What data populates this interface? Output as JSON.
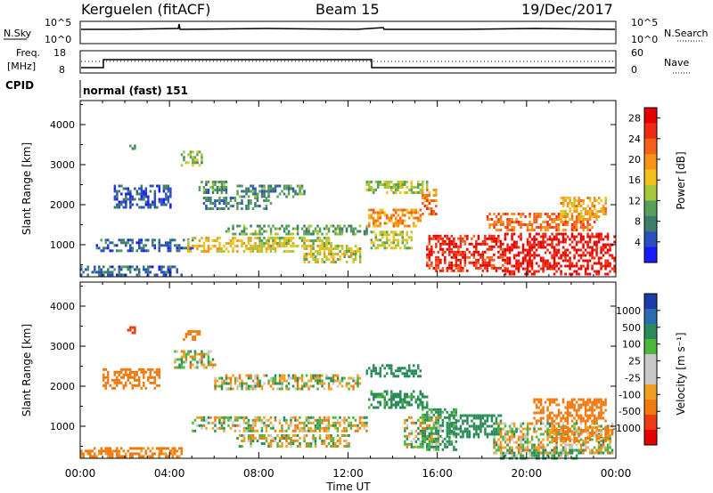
{
  "header": {
    "station": "Kerguelen (fitACF)",
    "beam": "Beam 15",
    "date": "19/Dec/2017"
  },
  "noise_panel": {
    "left_label": "N.Sky",
    "right_label": "N.Search",
    "left_ticks": [
      "10^5",
      "10^0"
    ],
    "right_ticks": [
      "10^5",
      "10^0"
    ]
  },
  "freq_panel": {
    "left_label_1": "Freq.",
    "left_label_2": "[MHz]",
    "right_label": "Nave",
    "left_ticks": [
      "18",
      "8"
    ],
    "right_ticks": [
      "60",
      "0"
    ]
  },
  "cpid_panel": {
    "label": "CPID",
    "mode": "normal (fast) 151"
  },
  "colors": {
    "power": [
      "#1a1aff",
      "#2b4fbf",
      "#3d7d6a",
      "#56a05a",
      "#a6c83c",
      "#f2c21b",
      "#f79319",
      "#f5601a",
      "#ef2b12",
      "#e60000"
    ],
    "velocity": [
      "#1c3da8",
      "#2a6cb0",
      "#2b8c5a",
      "#4ab83a",
      "#c8c8c8",
      "#c8c8c8",
      "#f0a020",
      "#f07a10",
      "#ee3b16",
      "#e60000"
    ]
  },
  "chart_data": [
    {
      "type": "heatmap",
      "title": "",
      "xlabel": "",
      "ylabel": "Slant Range [km]",
      "xlim": [
        "00:00",
        "24:00"
      ],
      "ylim": [
        200,
        4600
      ],
      "x_ticks": [
        "00:00",
        "04:00",
        "08:00",
        "12:00",
        "16:00",
        "20:00",
        "00:00"
      ],
      "y_ticks": [
        "1000",
        "2000",
        "3000",
        "4000"
      ],
      "colorbar": {
        "label": "Power [dB]",
        "ticks": [
          "28",
          "24",
          "20",
          "16",
          "12",
          "8",
          "4"
        ],
        "range": [
          0,
          30
        ]
      },
      "patches": [
        {
          "t0": 0.0,
          "t1": 4.5,
          "r0": 220,
          "r1": 480,
          "value": 6
        },
        {
          "t0": 0.7,
          "t1": 5.0,
          "r0": 880,
          "r1": 1150,
          "value": 6
        },
        {
          "t0": 1.5,
          "t1": 4.0,
          "r0": 1900,
          "r1": 2500,
          "value": 5
        },
        {
          "t0": 2.2,
          "t1": 2.4,
          "r0": 3300,
          "r1": 3500,
          "value": 7
        },
        {
          "t0": 4.5,
          "t1": 5.4,
          "r0": 2950,
          "r1": 3350,
          "value": 12
        },
        {
          "t0": 5.3,
          "t1": 6.5,
          "r0": 2300,
          "r1": 2600,
          "value": 9
        },
        {
          "t0": 4.8,
          "t1": 9.5,
          "r0": 850,
          "r1": 1200,
          "value": 17
        },
        {
          "t0": 6.5,
          "t1": 12.8,
          "r0": 1280,
          "r1": 1500,
          "value": 10
        },
        {
          "t0": 8.0,
          "t1": 11.2,
          "r0": 950,
          "r1": 1200,
          "value": 14
        },
        {
          "t0": 5.5,
          "t1": 8.5,
          "r0": 1900,
          "r1": 2200,
          "value": 8
        },
        {
          "t0": 7.0,
          "t1": 10.0,
          "r0": 2200,
          "r1": 2500,
          "value": 9
        },
        {
          "t0": 10.0,
          "t1": 12.5,
          "r0": 550,
          "r1": 1000,
          "value": 15
        },
        {
          "t0": 12.8,
          "t1": 15.5,
          "r0": 2300,
          "r1": 2600,
          "value": 13
        },
        {
          "t0": 12.9,
          "t1": 15.2,
          "r0": 1450,
          "r1": 1900,
          "value": 20
        },
        {
          "t0": 15.3,
          "t1": 15.9,
          "r0": 1750,
          "r1": 2400,
          "value": 21
        },
        {
          "t0": 13.0,
          "t1": 14.8,
          "r0": 900,
          "r1": 1350,
          "value": 14
        },
        {
          "t0": 15.5,
          "t1": 19.0,
          "r0": 350,
          "r1": 1250,
          "value": 26
        },
        {
          "t0": 19.0,
          "t1": 23.9,
          "r0": 250,
          "r1": 1300,
          "value": 28
        },
        {
          "t0": 18.2,
          "t1": 23.0,
          "r0": 1350,
          "r1": 1800,
          "value": 22
        },
        {
          "t0": 21.5,
          "t1": 23.5,
          "r0": 1650,
          "r1": 2200,
          "value": 18
        }
      ]
    },
    {
      "type": "heatmap",
      "title": "",
      "xlabel": "Time UT",
      "ylabel": "Slant Range [km]",
      "xlim": [
        "00:00",
        "24:00"
      ],
      "ylim": [
        200,
        4600
      ],
      "x_ticks": [
        "00:00",
        "04:00",
        "08:00",
        "12:00",
        "16:00",
        "20:00",
        "00:00"
      ],
      "y_ticks": [
        "1000",
        "2000",
        "3000",
        "4000"
      ],
      "colorbar": {
        "label": "Velocity [m s⁻¹]",
        "ticks": [
          "1000",
          "500",
          "100",
          "25",
          "-25",
          "-100",
          "-500",
          "-1000"
        ],
        "range": [
          -1000,
          1000
        ]
      },
      "patches": [
        {
          "t0": 0.0,
          "t1": 4.5,
          "r0": 220,
          "r1": 480,
          "value": -200
        },
        {
          "t0": 1.0,
          "t1": 3.5,
          "r0": 1950,
          "r1": 2450,
          "value": -300
        },
        {
          "t0": 2.1,
          "t1": 2.4,
          "r0": 3300,
          "r1": 3500,
          "value": -700
        },
        {
          "t0": 4.6,
          "t1": 5.3,
          "r0": 3150,
          "r1": 3400,
          "value": -350
        },
        {
          "t0": 4.2,
          "t1": 6.0,
          "r0": 2450,
          "r1": 2900,
          "value": 0
        },
        {
          "t0": 5.0,
          "t1": 12.8,
          "r0": 850,
          "r1": 1250,
          "value": 5
        },
        {
          "t0": 6.0,
          "t1": 12.5,
          "r0": 1900,
          "r1": 2300,
          "value": 0
        },
        {
          "t0": 7.0,
          "t1": 12.0,
          "r0": 500,
          "r1": 800,
          "value": -10
        },
        {
          "t0": 12.9,
          "t1": 15.5,
          "r0": 1450,
          "r1": 1900,
          "value": 200
        },
        {
          "t0": 12.8,
          "t1": 15.2,
          "r0": 2250,
          "r1": 2550,
          "value": 250
        },
        {
          "t0": 14.5,
          "t1": 16.0,
          "r0": 450,
          "r1": 1250,
          "value": 0
        },
        {
          "t0": 15.3,
          "t1": 16.8,
          "r0": 400,
          "r1": 1450,
          "value": 150
        },
        {
          "t0": 16.5,
          "t1": 18.8,
          "r0": 700,
          "r1": 1300,
          "value": 300
        },
        {
          "t0": 18.5,
          "t1": 23.8,
          "r0": 350,
          "r1": 1100,
          "value": 0
        },
        {
          "t0": 18.8,
          "t1": 22.2,
          "r0": 220,
          "r1": 430,
          "value": 120
        },
        {
          "t0": 20.3,
          "t1": 23.5,
          "r0": 1100,
          "r1": 1700,
          "value": -250
        },
        {
          "t0": 21.0,
          "t1": 23.8,
          "r0": 600,
          "r1": 1000,
          "value": -150
        }
      ]
    }
  ]
}
